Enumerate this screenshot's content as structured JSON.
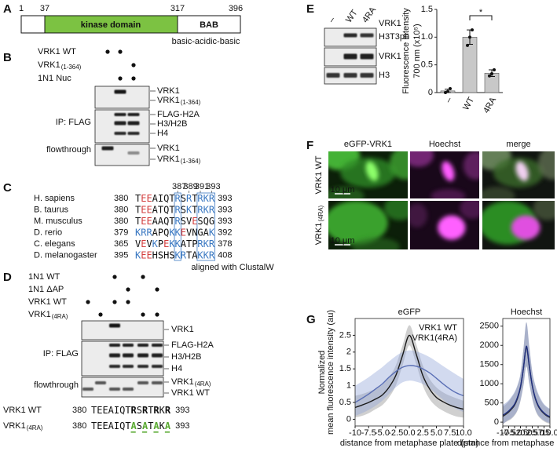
{
  "panel_labels": [
    "A",
    "B",
    "C",
    "D",
    "E",
    "F",
    "G"
  ],
  "panel_a": {
    "positions": [
      "1",
      "37",
      "317",
      "396"
    ],
    "domain": "kinase domain",
    "bab": "BAB",
    "bab_caption": "basic-acidic-basic"
  },
  "panel_b": {
    "conditions": [
      {
        "label": "VRK1 WT",
        "lanes": [
          true,
          true,
          false
        ]
      },
      {
        "label": {
          "label": "VRK1",
          "sub": "(1-364)"
        },
        "lanes": [
          false,
          false,
          true
        ]
      },
      {
        "label": "1N1 Nuc",
        "lanes": [
          false,
          true,
          true
        ]
      }
    ],
    "ip_label": "IP: FLAG",
    "ft_label": "flowthrough",
    "ip_top": [
      "VRK1",
      {
        "label": "VRK1",
        "sub": "(1-364)"
      }
    ],
    "histones": [
      "FLAG-H2A",
      "H3/H2B",
      "H4"
    ],
    "ft": [
      "VRK1",
      {
        "label": "VRK1",
        "sub": "(1-364)"
      }
    ]
  },
  "panel_c": {
    "positions": [
      "387",
      "389",
      "391",
      "393"
    ],
    "rows": [
      {
        "species": "H. sapiens",
        "start": "380",
        "seq": "TEEAIQTRSRTRKR",
        "end": "393"
      },
      {
        "species": "B. taurus",
        "start": "380",
        "seq": "TEEATQTRSKTRKR",
        "end": "393"
      },
      {
        "species": "M. musculus",
        "start": "380",
        "seq": "TEEAAQTRSVESQG",
        "end": "393"
      },
      {
        "species": "D. rerio",
        "start": "379",
        "seq": "KRRAPQKKEVNGAK",
        "end": "392"
      },
      {
        "species": "C. elegans",
        "start": "365",
        "seq": "VEVKPEKKATPRKR",
        "end": "378"
      },
      {
        "species": "D. melanogaster",
        "start": "395",
        "seq": "KEEHSHSKRTAKKR",
        "end": "408"
      }
    ],
    "caption": "aligned with ClustalW"
  },
  "panel_d": {
    "conditions": [
      {
        "label": "1N1 WT",
        "lanes": [
          false,
          false,
          true,
          false,
          true,
          false
        ]
      },
      {
        "label": "1N1 ΔAP",
        "lanes": [
          false,
          false,
          false,
          true,
          false,
          true
        ]
      },
      {
        "label": "VRK1 WT",
        "lanes": [
          true,
          false,
          true,
          true,
          false,
          false
        ]
      },
      {
        "label": {
          "label": "VRK1",
          "sub": "(4RA)"
        },
        "lanes": [
          false,
          true,
          false,
          false,
          true,
          true
        ]
      }
    ],
    "ip_label": "IP: FLAG",
    "ft_label": "flowthrough",
    "ip_top": [
      "VRK1"
    ],
    "histones": [
      "FLAG-H2A",
      "H3/H2B",
      "H4"
    ],
    "ft": [
      {
        "label": "VRK1",
        "sub": "(4RA)"
      },
      "VRK1 WT"
    ],
    "sequences": [
      {
        "name": "VRK1 WT",
        "start": "380",
        "seq": "TEEAIQTRSRTRKR",
        "end": "393"
      },
      {
        "name": {
          "label": "VRK1",
          "sub": "(4RA)"
        },
        "start": "380",
        "seq": "TEEAIQTASATAKA",
        "end": "393"
      }
    ]
  },
  "panel_e": {
    "lanes": [
      "–",
      "WT",
      "4RA"
    ],
    "header": "VRK1",
    "rows": [
      "H3T3ph",
      "VRK1",
      "H3"
    ],
    "significance": "*"
  },
  "panel_f": {
    "columns": [
      "eGFP-VRK1",
      "Hoechst",
      "merge"
    ],
    "rows": [
      "VRK1 WT",
      {
        "label": "VRK1",
        "sub": "(4RA)"
      }
    ],
    "scale_bar": "10 μm"
  },
  "chart_data": [
    {
      "type": "bar",
      "ylabel": [
        "Fluorescence intensity",
        "700 nm (x10⁵)"
      ],
      "categories": [
        "–",
        "WT",
        "4RA"
      ],
      "values": [
        0.03,
        1.0,
        0.35
      ],
      "errors": [
        0.03,
        0.13,
        0.06
      ],
      "points": [
        [
          0.0,
          0.02,
          0.07
        ],
        [
          0.85,
          1.0,
          1.13
        ],
        [
          0.3,
          0.34,
          0.41
        ]
      ],
      "color": "#c8c8c8",
      "ylim": [
        0,
        1.5
      ],
      "yticks": [
        0,
        0.5,
        {
          "value": 1,
          "label": "1.0"
        },
        1.5
      ]
    },
    {
      "type": "line",
      "title": "eGFP",
      "ylabel": [
        "Normalized",
        "mean fluorescence intensity (au)"
      ],
      "xlabel": "distance from metaphase plate (μm)",
      "legend": "upper right",
      "x": [
        -10,
        -8.75,
        -7.5,
        -6.25,
        -5,
        -3.75,
        -2.5,
        -1.25,
        0,
        1.25,
        2.5,
        3.75,
        5,
        6.25,
        7.5,
        8.75,
        10
      ],
      "xlim": [
        -10,
        10
      ],
      "ylim": [
        -0.2,
        3.0
      ],
      "xticks": [
        -10,
        -7.5,
        {
          "value": -5,
          "label": "-5.0"
        },
        -2.5,
        {
          "value": 0,
          "label": "0.0"
        },
        2.5,
        {
          "value": 5,
          "label": "5.0"
        },
        7.5,
        {
          "value": 10,
          "label": "10.0"
        }
      ],
      "yticks": [
        0,
        0.5,
        1,
        1.5,
        2,
        2.5
      ],
      "series": [
        {
          "name": "VRK1 WT",
          "color": "#1a1a1a",
          "band_color": "#8a8a8a",
          "values": [
            0.35,
            0.42,
            0.5,
            0.6,
            0.72,
            0.95,
            1.3,
            1.9,
            2.5,
            1.95,
            1.3,
            0.9,
            0.65,
            0.52,
            0.42,
            0.35,
            0.3
          ],
          "upper": [
            0.7,
            0.75,
            0.82,
            0.9,
            1.02,
            1.25,
            1.6,
            2.2,
            2.8,
            2.25,
            1.6,
            1.2,
            0.95,
            0.8,
            0.7,
            0.62,
            0.55
          ],
          "lower": [
            0.05,
            0.1,
            0.18,
            0.3,
            0.42,
            0.65,
            1.0,
            1.6,
            2.2,
            1.65,
            1.0,
            0.6,
            0.38,
            0.25,
            0.15,
            0.08,
            0.05
          ]
        },
        {
          "name": "VRK1(4RA)",
          "color": "#5a6fb5",
          "band_color": "#8fa2d8",
          "values": [
            0.5,
            0.62,
            0.75,
            0.9,
            1.05,
            1.25,
            1.42,
            1.55,
            1.6,
            1.58,
            1.5,
            1.38,
            1.22,
            1.05,
            0.9,
            0.78,
            0.7
          ],
          "upper": [
            1.0,
            1.12,
            1.25,
            1.4,
            1.55,
            1.72,
            1.88,
            2.0,
            2.05,
            2.02,
            1.95,
            1.85,
            1.72,
            1.58,
            1.45,
            1.32,
            1.2
          ],
          "lower": [
            0.1,
            0.18,
            0.28,
            0.4,
            0.55,
            0.75,
            0.95,
            1.1,
            1.15,
            1.12,
            1.05,
            0.92,
            0.75,
            0.58,
            0.42,
            0.3,
            0.22
          ]
        }
      ]
    },
    {
      "type": "line",
      "title": "Hoechst",
      "xlabel": "distance from metaphase plate (μm)",
      "x": [
        -10,
        -8.75,
        -7.5,
        -6.25,
        -5,
        -3.75,
        -2.5,
        -1.25,
        0,
        1.25,
        2.5,
        3.75,
        5,
        6.25,
        7.5,
        8.75,
        10
      ],
      "xlim": [
        -10,
        10
      ],
      "ylim": [
        -100,
        2700
      ],
      "xticks": [
        -10,
        -7.5,
        {
          "value": -5,
          "label": "-5.0"
        },
        -2.5,
        {
          "value": 0,
          "label": "0.0"
        },
        2.5,
        {
          "value": 5,
          "label": "5.0"
        },
        7.5,
        {
          "value": 10,
          "label": "10.0"
        }
      ],
      "yticks": [
        0,
        500,
        1000,
        1500,
        2000,
        2500
      ],
      "series": [
        {
          "color": "#333333",
          "band_color": "#8a8a8a",
          "values": [
            150,
            200,
            260,
            340,
            440,
            620,
            900,
            1400,
            1950,
            1450,
            950,
            620,
            420,
            300,
            220,
            160,
            120
          ],
          "upper": [
            400,
            460,
            540,
            640,
            760,
            950,
            1250,
            1900,
            2600,
            1950,
            1300,
            950,
            720,
            560,
            450,
            380,
            330
          ],
          "lower": [
            -50,
            0,
            40,
            90,
            170,
            300,
            550,
            950,
            1450,
            1000,
            600,
            320,
            160,
            80,
            20,
            -20,
            -50
          ]
        },
        {
          "color": "#1f2f80",
          "band_color": "#6f82c0",
          "values": [
            180,
            230,
            290,
            370,
            470,
            650,
            920,
            1400,
            1980,
            1470,
            960,
            640,
            440,
            320,
            240,
            180,
            140
          ],
          "upper": [
            450,
            500,
            570,
            670,
            790,
            970,
            1270,
            1900,
            2600,
            1980,
            1330,
            980,
            750,
            590,
            470,
            400,
            350
          ],
          "lower": [
            -50,
            10,
            60,
            110,
            190,
            320,
            560,
            950,
            1450,
            1000,
            620,
            340,
            180,
            100,
            40,
            0,
            -20
          ]
        }
      ]
    }
  ]
}
